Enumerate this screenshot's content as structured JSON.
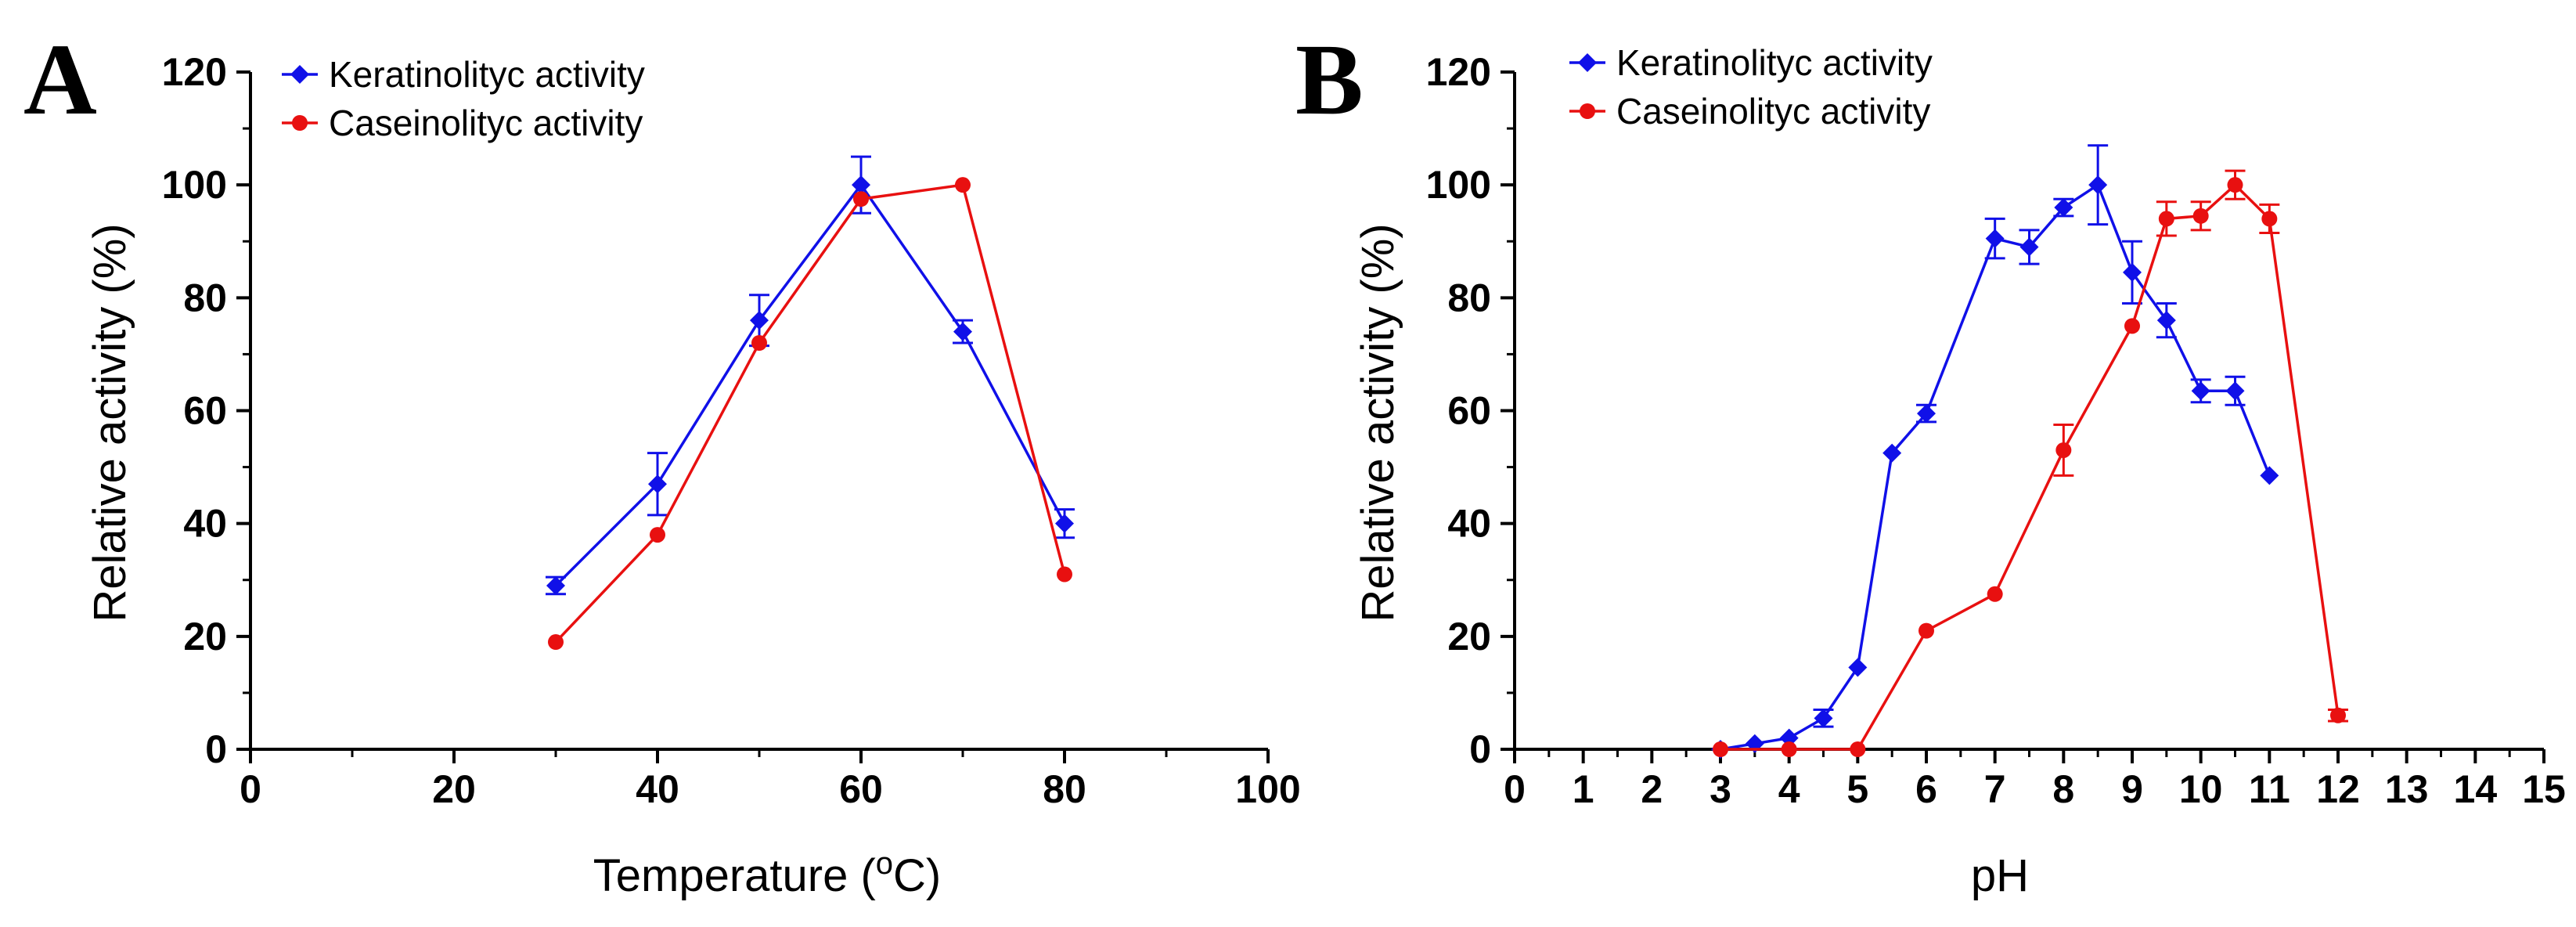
{
  "chart_data": [
    {
      "panel": "A",
      "type": "line",
      "xlabel_main": "Temperature (",
      "xlabel_sup": "o",
      "xlabel_tail": "C)",
      "ylabel": "Relative activity (%)",
      "xlim": [
        0,
        100
      ],
      "ylim": [
        0,
        120
      ],
      "xticks": [
        0,
        20,
        40,
        60,
        80,
        100
      ],
      "yticks": [
        0,
        20,
        40,
        60,
        80,
        100,
        120
      ],
      "series": [
        {
          "name": "Keratinolityc  activity",
          "color": "#1010e8",
          "marker": "diamond",
          "x": [
            30,
            40,
            50,
            60,
            70,
            80
          ],
          "y": [
            29,
            47,
            76,
            100,
            74,
            40
          ],
          "err": [
            1.5,
            5.5,
            4.5,
            5,
            2,
            2.5
          ]
        },
        {
          "name": "Caseinolityc activity",
          "color": "#e81010",
          "marker": "circle",
          "x": [
            30,
            40,
            50,
            60,
            70,
            80
          ],
          "y": [
            19,
            38,
            72,
            97.5,
            100,
            31
          ],
          "err": [
            0,
            0,
            0,
            0,
            0,
            0
          ]
        }
      ]
    },
    {
      "panel": "B",
      "type": "line",
      "xlabel": "pH",
      "ylabel": "Relative activity (%)",
      "xlim": [
        0,
        15
      ],
      "ylim": [
        0,
        120
      ],
      "xticks": [
        0,
        1,
        2,
        3,
        4,
        5,
        6,
        7,
        8,
        9,
        10,
        11,
        12,
        13,
        14,
        15
      ],
      "yticks": [
        0,
        20,
        40,
        60,
        80,
        100,
        120
      ],
      "series": [
        {
          "name": "Keratinolityc  activity",
          "color": "#1010e8",
          "marker": "diamond",
          "x": [
            3,
            3.5,
            4,
            4.5,
            5,
            5.5,
            6,
            7,
            7.5,
            8,
            8.5,
            9,
            9.5,
            10,
            10.5,
            11
          ],
          "y": [
            0,
            1,
            2,
            5.5,
            14.5,
            52.5,
            59.5,
            90.5,
            89,
            96,
            100,
            84.5,
            76,
            63.5,
            63.5,
            48.5
          ],
          "err": [
            0,
            0,
            0,
            1.5,
            0,
            0,
            1.5,
            3.5,
            3,
            1.5,
            7,
            5.5,
            3,
            2,
            2.5,
            0
          ]
        },
        {
          "name": "Caseinolityc activity",
          "color": "#e81010",
          "marker": "circle",
          "x": [
            3,
            4,
            5,
            6,
            7,
            8,
            9,
            9.5,
            10,
            10.5,
            11,
            12
          ],
          "y": [
            0,
            0,
            0,
            21,
            27.5,
            53,
            75,
            94,
            94.5,
            100,
            94,
            6
          ],
          "err": [
            0,
            0,
            0,
            0,
            0,
            4.5,
            0,
            3,
            2.5,
            2.5,
            2.5,
            1
          ]
        }
      ]
    }
  ]
}
